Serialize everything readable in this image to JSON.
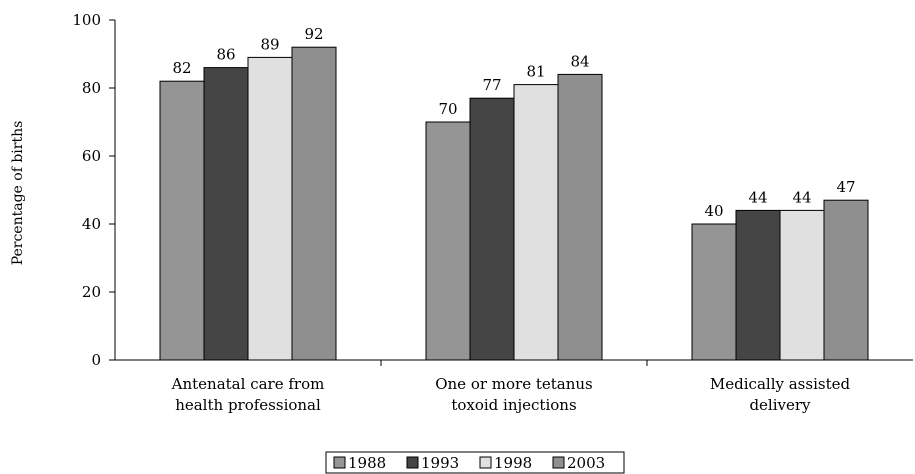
{
  "chart_data": {
    "type": "bar",
    "title": "",
    "xlabel": "",
    "ylabel": "Percentage of births",
    "ylim": [
      0,
      100
    ],
    "yticks": [
      0,
      20,
      40,
      60,
      80,
      100
    ],
    "grid": false,
    "legend_position": "bottom",
    "categories": [
      [
        "Antenatal care from",
        "health professional"
      ],
      [
        "One or more tetanus",
        "toxoid injections"
      ],
      [
        "Medically assisted",
        "delivery"
      ]
    ],
    "series": [
      {
        "name": "1988",
        "color": "#959595",
        "values": [
          82,
          70,
          40
        ]
      },
      {
        "name": "1993",
        "color": "#454545",
        "values": [
          86,
          77,
          44
        ]
      },
      {
        "name": "1998",
        "color": "#e0e0e0",
        "values": [
          89,
          81,
          44
        ]
      },
      {
        "name": "2003",
        "color": "#8f8f8f",
        "values": [
          92,
          84,
          47
        ]
      }
    ]
  }
}
